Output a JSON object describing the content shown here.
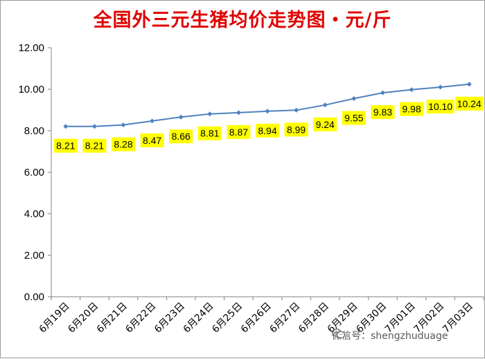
{
  "title": "全国外三元生猪均价走势图・元/斤",
  "watermark": "微信号：shengzhuduage",
  "colors": {
    "title": "#e00000",
    "line": "#4f81bd",
    "label_bg": "#ffff00"
  },
  "chart_data": {
    "type": "line",
    "title": "全国外三元生猪均价走势图・元/斤",
    "categories": [
      "6月19日",
      "6月20日",
      "6月21日",
      "6月22日",
      "6月23日",
      "6月24日",
      "6月25日",
      "6月26日",
      "6月27日",
      "6月28日",
      "6月29日",
      "6月30日",
      "7月01日",
      "7月02日",
      "7月03日"
    ],
    "series": [
      {
        "values": [
          8.21,
          8.21,
          8.28,
          8.47,
          8.66,
          8.81,
          8.87,
          8.94,
          8.99,
          9.24,
          9.55,
          9.83,
          9.98,
          10.1,
          10.24
        ]
      }
    ],
    "data_labels": [
      "8.21",
      "8.21",
      "8.28",
      "8.47",
      "8.66",
      "8.81",
      "8.87",
      "8.94",
      "8.99",
      "9.24",
      "9.55",
      "9.83",
      "9.98",
      "10.10",
      "10.24"
    ],
    "y_ticks": [
      "0.00",
      "2.00",
      "4.00",
      "6.00",
      "8.00",
      "10.00",
      "12.00"
    ],
    "ylim": [
      0,
      12
    ],
    "grid": false,
    "legend": "none"
  }
}
